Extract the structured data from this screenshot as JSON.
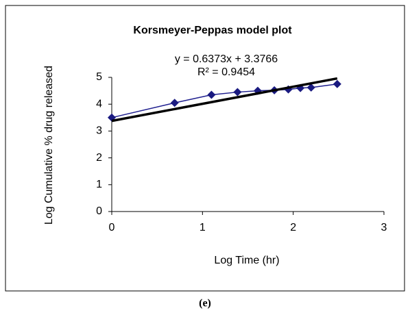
{
  "chart_data": {
    "type": "line",
    "title": "Korsmeyer-Peppas model plot",
    "annotations": [
      "y = 0.6373x + 3.3766",
      "R² = 0.9454"
    ],
    "x_label": "Log Time (hr)",
    "y_label": "Log Cumulative % drug released",
    "caption": "(e)",
    "xlim": [
      0,
      3
    ],
    "xticks": [
      0,
      1,
      2,
      3
    ],
    "ylim": [
      0,
      5
    ],
    "yticks": [
      0,
      1,
      2,
      3,
      4,
      5
    ],
    "grid": false,
    "series": [
      {
        "name": "Data",
        "color": "#1f1f8f",
        "marker_color": "#1a1a80",
        "x": [
          0,
          0.693,
          1.099,
          1.386,
          1.609,
          1.792,
          1.946,
          2.079,
          2.197,
          2.485
        ],
        "values": [
          3.5,
          4.05,
          4.35,
          4.45,
          4.5,
          4.52,
          4.55,
          4.6,
          4.62,
          4.75
        ]
      },
      {
        "name": "Trendline",
        "color": "#000000",
        "x": [
          0,
          2.485
        ],
        "values": [
          3.3766,
          4.96
        ]
      }
    ]
  }
}
